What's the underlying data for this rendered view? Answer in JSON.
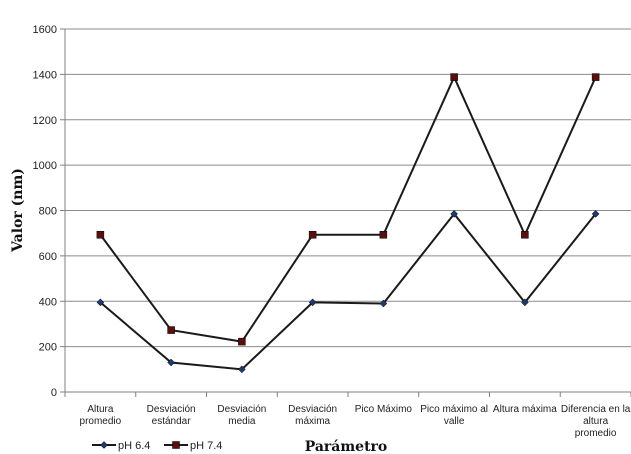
{
  "chart_data": {
    "type": "line",
    "xlabel": "Parámetro",
    "ylabel": "Valor (nm)",
    "ylim": [
      0,
      1600
    ],
    "yticks": [
      0,
      200,
      400,
      600,
      800,
      1000,
      1200,
      1400,
      1600
    ],
    "grid": true,
    "legend_position": "bottom-left",
    "categories": [
      [
        "Altura",
        "promedio"
      ],
      [
        "Desviación",
        "estándar"
      ],
      [
        "Desviación",
        "media"
      ],
      [
        "Desviación",
        "máxima"
      ],
      [
        "Pico Máximo"
      ],
      [
        "Pico máximo al",
        "valle"
      ],
      [
        "Altura máxima"
      ],
      [
        "Diferencia en la",
        "altura",
        "promedio"
      ]
    ],
    "series": [
      {
        "name": "pH 6.4",
        "color": "#1a1a1a",
        "marker": "diamond",
        "marker_color": "#1f3a6e",
        "values": [
          395,
          130,
          100,
          395,
          390,
          785,
          395,
          785
        ]
      },
      {
        "name": "pH 7.4",
        "color": "#1a1a1a",
        "marker": "square",
        "marker_color": "#5a0f0f",
        "values": [
          693,
          273,
          222,
          693,
          693,
          1388,
          693,
          1388
        ]
      }
    ]
  }
}
